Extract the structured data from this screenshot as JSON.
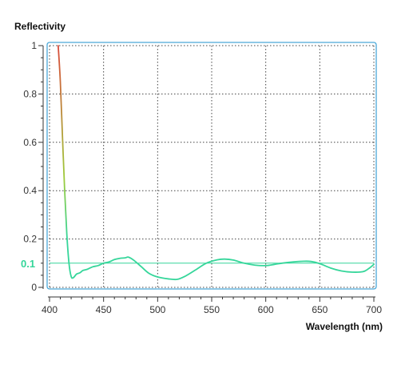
{
  "chart_data": {
    "type": "line",
    "title": "",
    "xlabel": "Wavelength (nm)",
    "ylabel": "Reflectivity",
    "xlim": [
      400,
      700
    ],
    "ylim": [
      0,
      1
    ],
    "grid": true,
    "x_ticks": [
      400,
      450,
      500,
      550,
      600,
      650,
      700
    ],
    "x_tick_labels": [
      "400",
      "450",
      "500",
      "550",
      "600",
      "650",
      "700"
    ],
    "y_ticks": [
      0,
      0.2,
      0.4,
      0.6,
      0.8,
      1
    ],
    "y_tick_labels": [
      "0",
      "0.2",
      "0.4",
      "0.6",
      "0.8",
      "1"
    ],
    "reference_line": {
      "value": 0.1,
      "label": "0.1",
      "color": "#35d69a"
    },
    "colors": {
      "frame": "#4aa8d8",
      "grid": "#444444",
      "axis": "#333333",
      "curve_high": "#d94a3a",
      "curve_mid": "#9ecb3a",
      "curve_low": "#35d69a"
    },
    "series": [
      {
        "x": [
          408,
          410,
          412,
          414,
          416,
          418,
          420,
          422,
          425,
          428,
          431,
          435,
          440,
          445,
          450,
          455,
          460,
          465,
          470,
          473,
          478,
          485,
          492,
          500,
          510,
          518,
          525,
          535,
          545,
          555,
          562,
          570,
          580,
          590,
          600,
          608,
          615,
          625,
          635,
          642,
          650,
          660,
          670,
          680,
          690,
          695,
          700
        ],
        "y": [
          1.0,
          0.85,
          0.62,
          0.4,
          0.22,
          0.1,
          0.045,
          0.04,
          0.055,
          0.06,
          0.07,
          0.075,
          0.085,
          0.09,
          0.1,
          0.105,
          0.115,
          0.12,
          0.122,
          0.125,
          0.112,
          0.085,
          0.058,
          0.043,
          0.035,
          0.033,
          0.045,
          0.072,
          0.1,
          0.114,
          0.117,
          0.113,
          0.1,
          0.092,
          0.09,
          0.095,
          0.1,
          0.105,
          0.108,
          0.107,
          0.098,
          0.08,
          0.068,
          0.063,
          0.065,
          0.077,
          0.095
        ]
      }
    ]
  }
}
